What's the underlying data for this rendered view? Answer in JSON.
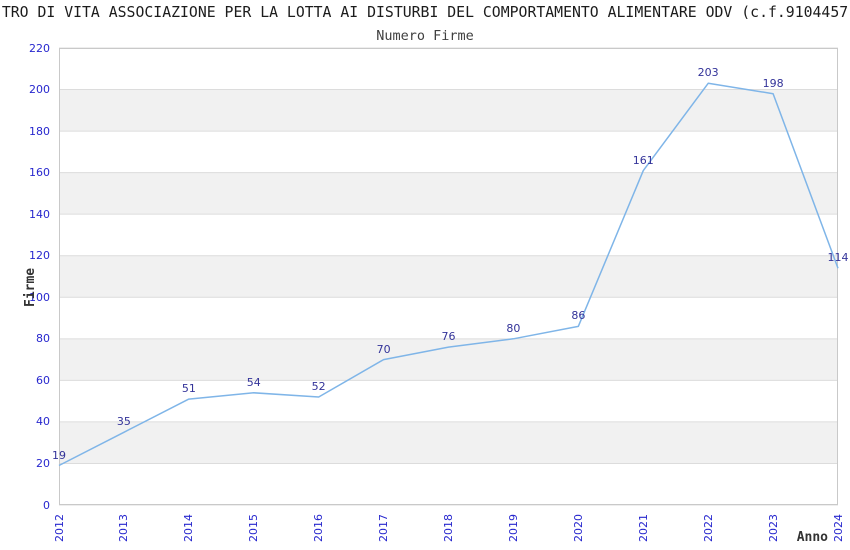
{
  "header": {
    "title": "TRO DI VITA ASSOCIAZIONE PER LA LOTTA AI DISTURBI DEL COMPORTAMENTO ALIMENTARE ODV (c.f.9104457",
    "subtitle": "Numero Firme"
  },
  "chart_data": {
    "type": "line",
    "title": "Numero Firme",
    "categories": [
      "2012",
      "2013",
      "2014",
      "2015",
      "2016",
      "2017",
      "2018",
      "2019",
      "2020",
      "2021",
      "2022",
      "2023",
      "2024"
    ],
    "series": [
      {
        "name": "Firme",
        "values": [
          19,
          35,
          51,
          54,
          52,
          70,
          76,
          80,
          86,
          161,
          203,
          198,
          114
        ]
      }
    ],
    "xlabel": "Anno",
    "ylabel": "Firme",
    "ylim": [
      0,
      220
    ],
    "ytick_step": 20,
    "grid": true,
    "legend_position": "none",
    "data_labels": true,
    "colors": {
      "line": "#7FB5E8",
      "tick_label": "#2727CE",
      "data_label": "#333399",
      "band": "#F1F1F1",
      "gridline": "#DCDCDC",
      "border": "#C9C9C9",
      "title": "#1C1C1C",
      "subtitle": "#3F3F3F",
      "axis_title": "#333333"
    }
  }
}
